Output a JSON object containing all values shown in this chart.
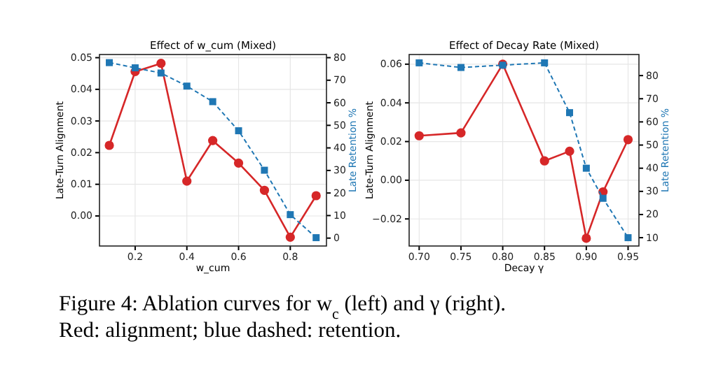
{
  "chart_data": [
    {
      "type": "line",
      "title": "Effect of w_cum (Mixed)",
      "xlabel": "w_cum",
      "ylabel": "Late-Turn Alignment",
      "y2label": "Late Retention %",
      "x": [
        0.1,
        0.2,
        0.3,
        0.4,
        0.5,
        0.6,
        0.7,
        0.8,
        0.9
      ],
      "series": [
        {
          "color": "#d62728",
          "marker": "circle",
          "line_style": "solid",
          "values": [
            0.0223,
            0.0456,
            0.0482,
            0.011,
            0.0238,
            0.0167,
            0.0081,
            -0.0067,
            0.0064
          ]
        },
        {
          "color": "#1f77b4",
          "marker": "square",
          "line_style": "dashed",
          "axis": "y2",
          "values": [
            77.8,
            75.5,
            73.2,
            67.4,
            60.5,
            47.6,
            30.1,
            10.4,
            0.2
          ]
        }
      ],
      "xlim": [
        0.062,
        0.94
      ],
      "xticks": [
        0.2,
        0.4,
        0.6,
        0.8
      ],
      "ylim": [
        -0.0095,
        0.051
      ],
      "yticks": [
        {
          "value": 0,
          "label": "0.00"
        },
        {
          "value": 0.01,
          "label": "0.01"
        },
        {
          "value": 0.02,
          "label": "0.02"
        },
        {
          "value": 0.03,
          "label": "0.03"
        },
        {
          "value": 0.04,
          "label": "0.04"
        },
        {
          "value": 0.05,
          "label": "0.05"
        }
      ],
      "y2lim": [
        -3.5,
        81.4
      ],
      "y2ticks": [
        0,
        10,
        20,
        30,
        40,
        50,
        60,
        70,
        80
      ],
      "grid": true,
      "annotations": [
        "Figure 4: Ablation curves for w$_{c}$ (left) and γ (right). Red: alignment; blue dashed: retention."
      ]
    },
    {
      "type": "line",
      "title": "Effect of Decay Rate (Mixed)",
      "xlabel": "Decay γ",
      "ylabel": "Late-Turn Alignment",
      "y2label": "Late Retention %",
      "x": [
        0.7,
        0.75,
        0.8,
        0.85,
        0.88,
        0.9,
        0.92,
        0.95
      ],
      "series": [
        {
          "color": "#d62728",
          "marker": "circle",
          "line_style": "solid",
          "values": [
            0.023,
            0.0245,
            0.06,
            0.01,
            0.015,
            -0.03,
            -0.006,
            0.021
          ]
        },
        {
          "color": "#1f77b4",
          "marker": "square",
          "line_style": "dashed",
          "axis": "y2",
          "values": [
            85.5,
            83.5,
            84.5,
            85.5,
            64,
            40,
            27,
            10
          ]
        }
      ],
      "xlim": [
        0.688,
        0.963
      ],
      "xticks": [
        {
          "value": 0.7,
          "label": "0.70"
        },
        {
          "value": 0.75,
          "label": "0.75"
        },
        {
          "value": 0.8,
          "label": "0.80"
        },
        {
          "value": 0.85,
          "label": "0.85"
        },
        {
          "value": 0.9,
          "label": "0.90"
        },
        {
          "value": 0.95,
          "label": "0.95"
        }
      ],
      "ylim": [
        -0.034,
        0.065
      ],
      "yticks": [
        {
          "value": -0.02,
          "label": "−0.02"
        },
        {
          "value": 0,
          "label": "0.00"
        },
        {
          "value": 0.02,
          "label": "0.02"
        },
        {
          "value": 0.04,
          "label": "0.04"
        },
        {
          "value": 0.06,
          "label": "0.06"
        }
      ],
      "y2lim": [
        6.4,
        89.1
      ],
      "y2ticks": [
        10,
        20,
        30,
        40,
        50,
        60,
        70,
        80
      ],
      "grid": true
    }
  ]
}
